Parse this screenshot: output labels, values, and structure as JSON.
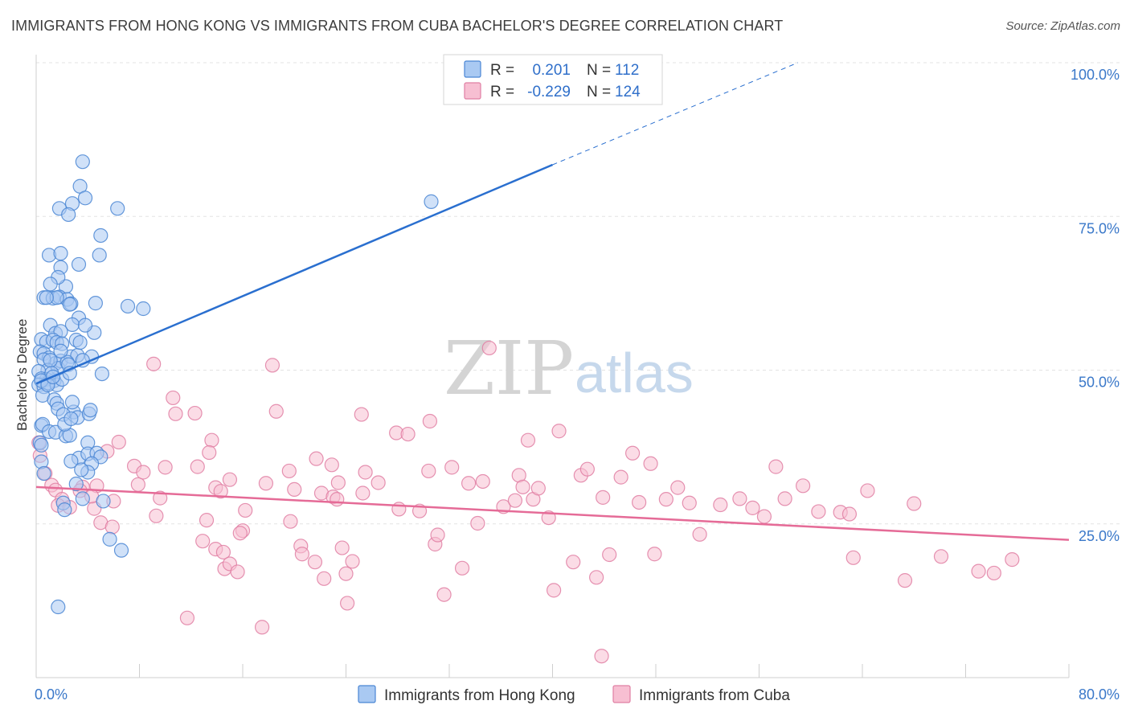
{
  "title": "IMMIGRANTS FROM HONG KONG VS IMMIGRANTS FROM CUBA BACHELOR'S DEGREE CORRELATION CHART",
  "source": "Source: ZipAtlas.com",
  "watermark": {
    "zip": "ZIP",
    "atlas": "atlas"
  },
  "colors": {
    "blue_fill": "#a9c9f2",
    "blue_stroke": "#4a86d4",
    "blue_line": "#2a6fcf",
    "pink_fill": "#f7bfd2",
    "pink_stroke": "#e07fa3",
    "pink_line": "#e56b97",
    "tick_text": "#3a78c9",
    "grid": "#e3e3e3"
  },
  "legend": {
    "rows": [
      {
        "r_label": "R =",
        "r_value": "0.201",
        "n_label": "N =",
        "n_value": "112"
      },
      {
        "r_label": "R =",
        "r_value": "-0.229",
        "n_label": "N =",
        "n_value": "124"
      }
    ]
  },
  "chart_data": {
    "type": "scatter",
    "title": "IMMIGRANTS FROM HONG KONG VS IMMIGRANTS FROM CUBA BACHELOR'S DEGREE CORRELATION CHART",
    "xlabel": "",
    "ylabel": "Bachelor's Degree",
    "xlim": [
      0,
      80
    ],
    "ylim": [
      0,
      100
    ],
    "x_tick_labels": [
      "0.0%",
      "80.0%"
    ],
    "y_ticks": [
      25,
      50,
      75,
      100
    ],
    "y_tick_labels": [
      "25.0%",
      "50.0%",
      "75.0%",
      "100.0%"
    ],
    "grid": true,
    "legend_position": "top-center",
    "series": [
      {
        "name": "Immigrants from Hong Kong",
        "r": 0.201,
        "n": 112,
        "trend": {
          "x0": 0,
          "y0": 47.8,
          "x1": 40,
          "y1": 83.4,
          "dash_to_x": 59,
          "dash_to_y": 100
        },
        "points": [
          [
            3.6,
            83.9
          ],
          [
            3.4,
            79.9
          ],
          [
            2.8,
            77.1
          ],
          [
            1.8,
            76.3
          ],
          [
            6.3,
            76.3
          ],
          [
            2.5,
            75.3
          ],
          [
            3.8,
            78.0
          ],
          [
            5.0,
            71.9
          ],
          [
            1.0,
            68.7
          ],
          [
            1.9,
            69.0
          ],
          [
            4.9,
            68.7
          ],
          [
            1.9,
            66.7
          ],
          [
            3.3,
            67.2
          ],
          [
            2.3,
            63.6
          ],
          [
            1.7,
            65.1
          ],
          [
            1.1,
            64.0
          ],
          [
            0.6,
            61.8
          ],
          [
            1.3,
            61.7
          ],
          [
            1.8,
            61.9
          ],
          [
            2.4,
            61.5
          ],
          [
            2.7,
            60.8
          ],
          [
            4.6,
            60.9
          ],
          [
            7.1,
            60.4
          ],
          [
            8.3,
            60.0
          ],
          [
            3.3,
            58.5
          ],
          [
            2.8,
            57.4
          ],
          [
            1.1,
            57.3
          ],
          [
            1.5,
            56.0
          ],
          [
            1.9,
            56.3
          ],
          [
            4.5,
            56.1
          ],
          [
            3.8,
            57.3
          ],
          [
            0.4,
            55.0
          ],
          [
            0.8,
            54.6
          ],
          [
            1.3,
            54.9
          ],
          [
            1.6,
            54.5
          ],
          [
            2.0,
            54.3
          ],
          [
            3.1,
            54.9
          ],
          [
            0.3,
            53.0
          ],
          [
            0.6,
            52.7
          ],
          [
            1.0,
            52.0
          ],
          [
            1.5,
            51.1
          ],
          [
            1.9,
            51.5
          ],
          [
            2.7,
            52.2
          ],
          [
            3.2,
            52.4
          ],
          [
            4.3,
            52.2
          ],
          [
            3.6,
            51.6
          ],
          [
            0.6,
            51.7
          ],
          [
            0.9,
            50.0
          ],
          [
            0.2,
            49.8
          ],
          [
            0.8,
            48.5
          ],
          [
            1.4,
            48.3
          ],
          [
            1.7,
            50.3
          ],
          [
            2.4,
            51.3
          ],
          [
            1.1,
            51.6
          ],
          [
            2.5,
            50.9
          ],
          [
            0.4,
            48.6
          ],
          [
            0.2,
            47.6
          ],
          [
            0.6,
            47.3
          ],
          [
            0.9,
            47.9
          ],
          [
            1.2,
            49.5
          ],
          [
            1.6,
            47.6
          ],
          [
            2.0,
            48.5
          ],
          [
            5.1,
            49.4
          ],
          [
            0.5,
            45.9
          ],
          [
            1.4,
            45.2
          ],
          [
            1.6,
            44.6
          ],
          [
            1.7,
            43.7
          ],
          [
            2.9,
            43.2
          ],
          [
            2.1,
            42.8
          ],
          [
            3.2,
            42.3
          ],
          [
            4.1,
            42.9
          ],
          [
            4.2,
            43.5
          ],
          [
            0.4,
            41.0
          ],
          [
            0.5,
            41.2
          ],
          [
            1.0,
            40.0
          ],
          [
            1.5,
            39.9
          ],
          [
            2.3,
            39.3
          ],
          [
            2.6,
            39.4
          ],
          [
            2.2,
            41.2
          ],
          [
            0.3,
            38.2
          ],
          [
            0.4,
            37.8
          ],
          [
            4.0,
            38.2
          ],
          [
            3.3,
            35.7
          ],
          [
            4.0,
            36.4
          ],
          [
            4.7,
            36.5
          ],
          [
            5.0,
            35.9
          ],
          [
            0.4,
            35.1
          ],
          [
            2.7,
            35.2
          ],
          [
            4.3,
            34.8
          ],
          [
            4.0,
            33.4
          ],
          [
            0.6,
            33.2
          ],
          [
            3.5,
            33.8
          ],
          [
            2.1,
            28.4
          ],
          [
            3.6,
            29.1
          ],
          [
            5.2,
            28.7
          ],
          [
            5.7,
            22.5
          ],
          [
            6.6,
            20.7
          ],
          [
            2.2,
            27.3
          ],
          [
            3.1,
            31.5
          ],
          [
            1.7,
            11.5
          ],
          [
            30.6,
            77.4
          ],
          [
            2.6,
            60.7
          ],
          [
            1.6,
            61.8
          ],
          [
            0.8,
            61.8
          ],
          [
            2.8,
            44.8
          ],
          [
            2.7,
            42.1
          ],
          [
            0.4,
            48.3
          ],
          [
            0.9,
            47.6
          ],
          [
            1.3,
            48.9
          ],
          [
            1.9,
            53.1
          ],
          [
            3.4,
            54.5
          ],
          [
            2.6,
            49.5
          ]
        ]
      },
      {
        "name": "Immigrants from Cuba",
        "r": -0.229,
        "n": 124,
        "trend": {
          "x0": 0,
          "y0": 31.0,
          "x1": 80,
          "y1": 22.4
        },
        "points": [
          [
            0.2,
            38.2
          ],
          [
            0.3,
            36.1
          ],
          [
            0.7,
            33.2
          ],
          [
            1.2,
            31.3
          ],
          [
            1.5,
            30.5
          ],
          [
            2.0,
            29.0
          ],
          [
            1.7,
            28.0
          ],
          [
            2.6,
            27.7
          ],
          [
            3.6,
            31.0
          ],
          [
            3.4,
            30.4
          ],
          [
            4.7,
            31.2
          ],
          [
            4.5,
            27.5
          ],
          [
            5.0,
            25.2
          ],
          [
            5.9,
            24.5
          ],
          [
            4.3,
            29.5
          ],
          [
            6.0,
            28.7
          ],
          [
            5.5,
            36.8
          ],
          [
            6.4,
            38.3
          ],
          [
            7.6,
            34.4
          ],
          [
            7.9,
            31.4
          ],
          [
            8.3,
            33.4
          ],
          [
            9.6,
            29.2
          ],
          [
            9.3,
            26.3
          ],
          [
            9.1,
            51.0
          ],
          [
            10.6,
            45.5
          ],
          [
            10.8,
            42.9
          ],
          [
            10.0,
            34.2
          ],
          [
            12.3,
            43.0
          ],
          [
            12.5,
            34.3
          ],
          [
            13.6,
            38.6
          ],
          [
            13.4,
            36.6
          ],
          [
            13.2,
            25.6
          ],
          [
            12.9,
            22.2
          ],
          [
            13.9,
            20.9
          ],
          [
            14.5,
            20.4
          ],
          [
            14.6,
            17.7
          ],
          [
            15.0,
            18.5
          ],
          [
            15.6,
            17.2
          ],
          [
            16.2,
            27.2
          ],
          [
            16.0,
            23.9
          ],
          [
            13.9,
            30.9
          ],
          [
            14.3,
            30.3
          ],
          [
            15.0,
            32.2
          ],
          [
            17.8,
            31.6
          ],
          [
            18.6,
            43.3
          ],
          [
            18.3,
            50.8
          ],
          [
            19.6,
            33.6
          ],
          [
            20.0,
            30.6
          ],
          [
            19.7,
            25.4
          ],
          [
            20.5,
            21.4
          ],
          [
            20.6,
            20.1
          ],
          [
            21.7,
            35.6
          ],
          [
            21.6,
            18.8
          ],
          [
            22.1,
            30.0
          ],
          [
            22.3,
            16.1
          ],
          [
            22.9,
            34.6
          ],
          [
            23.0,
            29.4
          ],
          [
            23.3,
            29.0
          ],
          [
            23.4,
            31.7
          ],
          [
            23.7,
            21.1
          ],
          [
            24.0,
            16.9
          ],
          [
            24.1,
            12.1
          ],
          [
            24.5,
            18.9
          ],
          [
            25.2,
            42.8
          ],
          [
            25.3,
            30.0
          ],
          [
            25.5,
            33.4
          ],
          [
            26.5,
            31.7
          ],
          [
            27.9,
            39.8
          ],
          [
            28.1,
            27.4
          ],
          [
            28.8,
            39.6
          ],
          [
            29.7,
            27.1
          ],
          [
            30.5,
            41.7
          ],
          [
            30.4,
            33.6
          ],
          [
            30.9,
            21.7
          ],
          [
            31.1,
            23.2
          ],
          [
            31.6,
            13.5
          ],
          [
            32.2,
            34.2
          ],
          [
            33.0,
            17.8
          ],
          [
            33.5,
            31.6
          ],
          [
            34.2,
            25.1
          ],
          [
            34.6,
            31.9
          ],
          [
            35.1,
            53.6
          ],
          [
            36.2,
            27.8
          ],
          [
            37.1,
            28.8
          ],
          [
            37.4,
            32.9
          ],
          [
            37.7,
            31.0
          ],
          [
            38.1,
            38.6
          ],
          [
            38.5,
            29.0
          ],
          [
            38.9,
            30.8
          ],
          [
            39.7,
            26.0
          ],
          [
            40.1,
            14.2
          ],
          [
            40.5,
            40.1
          ],
          [
            41.6,
            18.8
          ],
          [
            42.2,
            32.9
          ],
          [
            42.7,
            33.9
          ],
          [
            43.4,
            16.3
          ],
          [
            43.9,
            29.3
          ],
          [
            43.8,
            3.5
          ],
          [
            44.4,
            20.0
          ],
          [
            45.3,
            32.6
          ],
          [
            46.2,
            36.5
          ],
          [
            46.7,
            28.5
          ],
          [
            47.6,
            34.8
          ],
          [
            47.9,
            20.1
          ],
          [
            48.8,
            29.0
          ],
          [
            49.7,
            30.9
          ],
          [
            50.6,
            28.4
          ],
          [
            51.4,
            23.3
          ],
          [
            53.0,
            28.1
          ],
          [
            54.5,
            29.1
          ],
          [
            55.5,
            27.6
          ],
          [
            56.4,
            26.2
          ],
          [
            57.3,
            34.3
          ],
          [
            58.0,
            29.1
          ],
          [
            59.4,
            31.2
          ],
          [
            60.6,
            27.0
          ],
          [
            62.3,
            26.9
          ],
          [
            63.0,
            26.6
          ],
          [
            63.3,
            19.5
          ],
          [
            64.4,
            30.4
          ],
          [
            67.3,
            15.8
          ],
          [
            68.0,
            28.3
          ],
          [
            70.1,
            19.7
          ],
          [
            73.0,
            17.3
          ],
          [
            74.2,
            17.0
          ],
          [
            75.6,
            19.2
          ],
          [
            11.7,
            9.7
          ],
          [
            17.5,
            8.2
          ],
          [
            15.8,
            23.5
          ]
        ]
      }
    ]
  },
  "bottom_legend": {
    "items": [
      {
        "label": "Immigrants from Hong Kong"
      },
      {
        "label": "Immigrants from Cuba"
      }
    ]
  }
}
